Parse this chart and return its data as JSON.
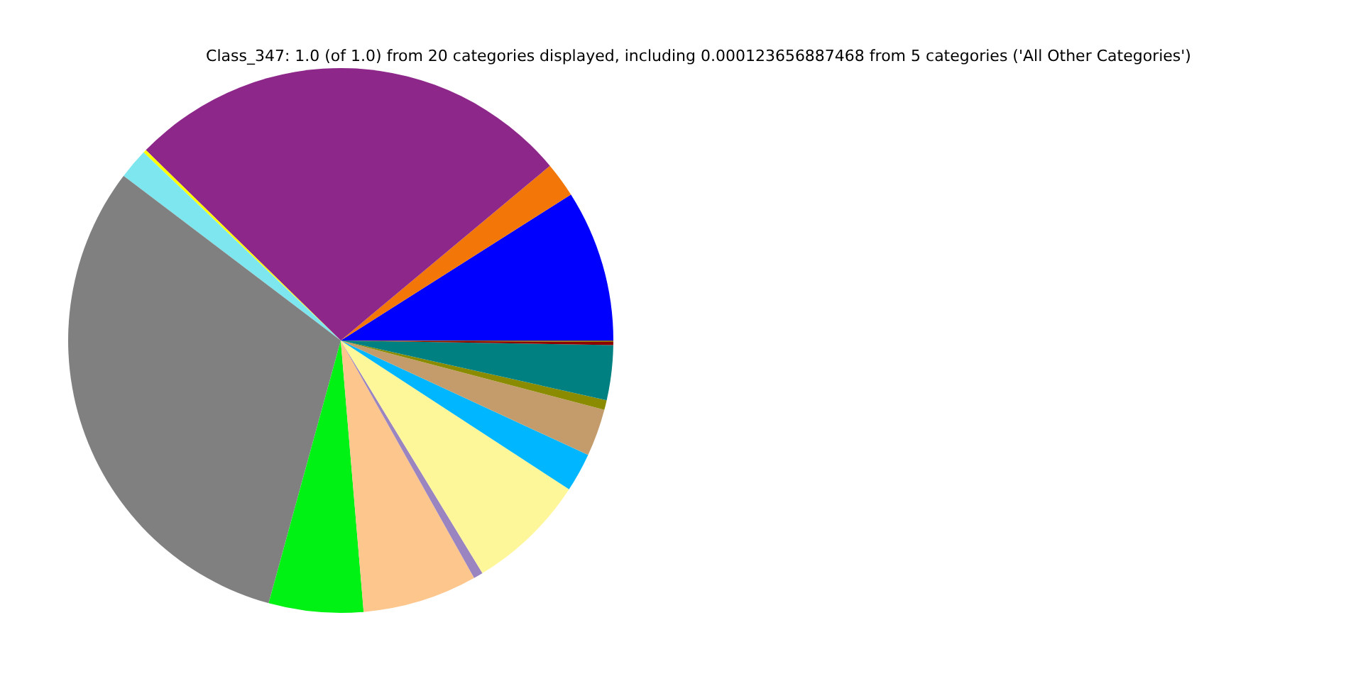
{
  "chart_data": {
    "type": "pie",
    "title": "Class_347: 1.0 (of 1.0) from 20 categories displayed, including 0.000123656887468 from 5 categories ('All Other Categories')",
    "categories": [
      null,
      null,
      null,
      null,
      null,
      null,
      null,
      null,
      null,
      null,
      null,
      null,
      null,
      null,
      null,
      null
    ],
    "values": [
      9.0,
      2.08,
      26.6,
      0.19,
      1.8,
      31.07,
      5.6,
      6.8,
      0.56,
      7.1,
      2.3,
      2.8,
      0.58,
      3.25,
      0.19,
      0.08
    ],
    "colors": [
      "#0000ff",
      "#f27708",
      "#8e278a",
      "#ffff00",
      "#7de6ee",
      "#808080",
      "#00f214",
      "#fdc68c",
      "#9b85c1",
      "#fef79a",
      "#00b7ff",
      "#c49c6c",
      "#8b8b00",
      "#008080",
      "#8b0000",
      "#8b6b00"
    ]
  }
}
